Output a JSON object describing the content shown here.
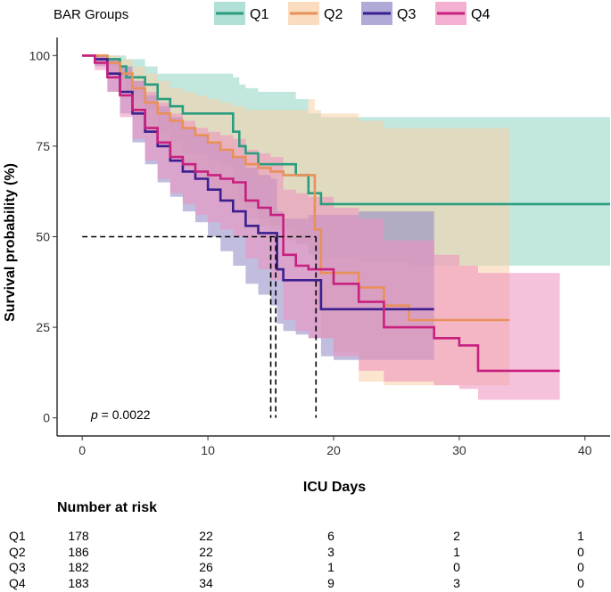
{
  "chart_data": {
    "type": "line",
    "subtype": "kaplan-meier",
    "legend": {
      "title": "BAR Groups",
      "position": "top",
      "entries": [
        {
          "name": "Q1",
          "color": "#2a9d7f",
          "fill": "#8fd3c4"
        },
        {
          "name": "Q2",
          "color": "#e8915a",
          "fill": "#f8cfa5"
        },
        {
          "name": "Q3",
          "color": "#3b1f8f",
          "fill": "#8d86c4"
        },
        {
          "name": "Q4",
          "color": "#c8207f",
          "fill": "#ee8fbe"
        }
      ]
    },
    "xlabel": "ICU Days",
    "ylabel": "Survival probability (%)",
    "xlim": [
      -2,
      42
    ],
    "ylim": [
      -5,
      105
    ],
    "xticks": [
      0,
      10,
      20,
      30,
      40
    ],
    "yticks": [
      0,
      25,
      50,
      75,
      100
    ],
    "annotation": {
      "p_label": "p",
      "p_value": " = 0.0022"
    },
    "median_line": {
      "y": 50,
      "x_medians": [
        15,
        15.4,
        18.6
      ]
    },
    "series": [
      {
        "name": "Q1",
        "x": [
          0,
          1,
          2,
          3,
          3.5,
          4,
          5,
          6,
          7,
          8,
          9,
          10,
          11,
          12,
          12.5,
          13,
          14,
          15,
          16,
          17,
          18,
          19,
          22,
          26,
          30,
          34,
          38,
          42
        ],
        "y": [
          100,
          100,
          99,
          97,
          94,
          94,
          92,
          88,
          86,
          84,
          84,
          84,
          84,
          79,
          75,
          73,
          70,
          70,
          70,
          67,
          62,
          59,
          59,
          59,
          59,
          59,
          59,
          59
        ],
        "lower": [
          100,
          99,
          97,
          93,
          89,
          88,
          85,
          79,
          76,
          73,
          73,
          71,
          70,
          65,
          60,
          58,
          55,
          53,
          52,
          48,
          45,
          44,
          43,
          42,
          42,
          42,
          42,
          42
        ],
        "upper": [
          100,
          100,
          100,
          100,
          99,
          99,
          97,
          95,
          95,
          95,
          95,
          95,
          95,
          94,
          92,
          91,
          90,
          90,
          90,
          88,
          84,
          83,
          83,
          83,
          83,
          83,
          83,
          83
        ]
      },
      {
        "name": "Q2",
        "x": [
          0,
          1,
          2,
          3,
          4,
          5,
          6,
          7,
          8,
          9,
          10,
          11,
          12,
          13,
          14,
          15,
          16,
          17,
          18,
          18.5,
          19,
          20,
          22,
          24,
          26,
          28,
          30,
          32,
          34
        ],
        "y": [
          100,
          100,
          98,
          95,
          91,
          87,
          84,
          82,
          80,
          78,
          76,
          74,
          72,
          70,
          69,
          68,
          67,
          67,
          67,
          52,
          40,
          40,
          36,
          31,
          27,
          27,
          27,
          27,
          27
        ],
        "lower": [
          100,
          98,
          95,
          89,
          84,
          79,
          75,
          72,
          69,
          66,
          63,
          60,
          57,
          55,
          53,
          52,
          49,
          48,
          46,
          30,
          22,
          18,
          10,
          9,
          9,
          9,
          9,
          9,
          9
        ],
        "upper": [
          100,
          100,
          100,
          99,
          97,
          95,
          93,
          91,
          90,
          89,
          88,
          87,
          86,
          85,
          85,
          85,
          85,
          85,
          88,
          85,
          84,
          84,
          82,
          80,
          80,
          80,
          80,
          80,
          80
        ]
      },
      {
        "name": "Q3",
        "x": [
          0,
          1,
          2,
          3,
          4,
          5,
          6,
          7,
          8,
          9,
          10,
          11,
          12,
          13,
          14,
          15,
          15.5,
          16,
          17,
          18,
          19,
          20,
          22,
          24,
          26,
          28
        ],
        "y": [
          100,
          99,
          95,
          90,
          84,
          79,
          75,
          71,
          68,
          66,
          63,
          60,
          57,
          53,
          51,
          51,
          41,
          38,
          38,
          38,
          30,
          30,
          30,
          30,
          30,
          30
        ],
        "lower": [
          100,
          97,
          90,
          84,
          76,
          70,
          65,
          61,
          57,
          54,
          50,
          46,
          42,
          37,
          34,
          31,
          26,
          24,
          23,
          22,
          17,
          16,
          16,
          16,
          16,
          16
        ],
        "upper": [
          100,
          100,
          99,
          97,
          93,
          89,
          86,
          83,
          80,
          78,
          76,
          74,
          72,
          69,
          67,
          66,
          57,
          55,
          55,
          56,
          56,
          56,
          57,
          57,
          57,
          57
        ]
      },
      {
        "name": "Q4",
        "x": [
          0,
          1,
          2,
          3,
          4,
          5,
          6,
          7,
          8,
          9,
          10,
          11,
          12,
          13,
          14,
          15,
          16,
          17,
          18,
          20,
          22,
          24,
          26,
          28,
          30,
          31.5,
          34,
          36,
          38
        ],
        "y": [
          100,
          98,
          94,
          89,
          85,
          80,
          76,
          72,
          70,
          68,
          67,
          66,
          65,
          60,
          58,
          56,
          45,
          42,
          41,
          37,
          32,
          25,
          25,
          22,
          20,
          13,
          13,
          13,
          13
        ],
        "lower": [
          100,
          96,
          90,
          83,
          77,
          71,
          66,
          62,
          59,
          56,
          54,
          52,
          50,
          44,
          41,
          38,
          27,
          24,
          22,
          17,
          13,
          10,
          10,
          9,
          8,
          5,
          5,
          5,
          5
        ],
        "upper": [
          100,
          100,
          99,
          96,
          93,
          90,
          87,
          84,
          82,
          80,
          79,
          78,
          77,
          74,
          73,
          72,
          63,
          62,
          61,
          58,
          55,
          49,
          49,
          45,
          42,
          40,
          40,
          40,
          40
        ]
      }
    ],
    "risk_table": {
      "title": "Number at risk",
      "times": [
        0,
        10,
        20,
        30,
        40
      ],
      "rows": [
        {
          "group": "Q1",
          "values": [
            "178",
            "22",
            "6",
            "2",
            "1"
          ]
        },
        {
          "group": "Q2",
          "values": [
            "186",
            "22",
            "3",
            "1",
            "0"
          ]
        },
        {
          "group": "Q3",
          "values": [
            "182",
            "26",
            "1",
            "0",
            "0"
          ]
        },
        {
          "group": "Q4",
          "values": [
            "183",
            "34",
            "9",
            "3",
            "0"
          ]
        }
      ]
    }
  }
}
